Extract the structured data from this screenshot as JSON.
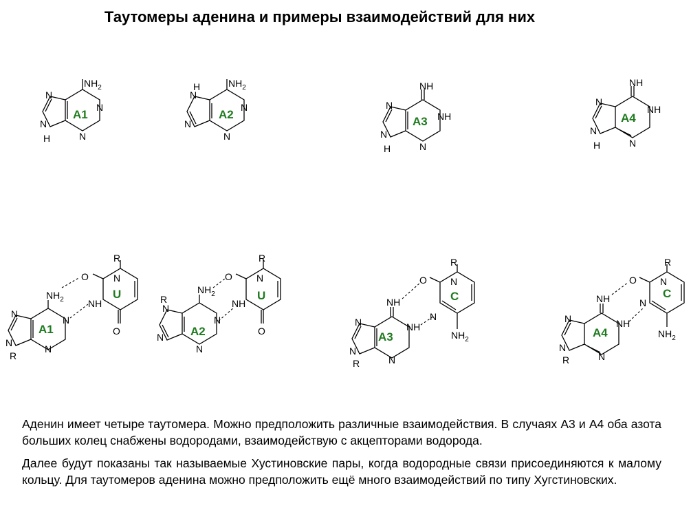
{
  "title": "Таутомеры аденина и примеры взаимодействий для них",
  "structures": {
    "tautomers": [
      {
        "tag": "A1",
        "nh2": "NH",
        "nh2_sub": "2",
        "h": "H",
        "n": "N"
      },
      {
        "tag": "A2",
        "nh2": "NH",
        "nh2_sub": "2",
        "h": "H",
        "n": "N"
      },
      {
        "tag": "A3",
        "imine": "NH",
        "nh": "NH",
        "h": "H",
        "n": "N"
      },
      {
        "tag": "A4",
        "imine": "NH",
        "nh": "NH",
        "h": "H",
        "n": "N"
      }
    ],
    "pairs": [
      {
        "adenine": "A1",
        "partner": "U",
        "r": "R",
        "o": "O",
        "n": "N",
        "nh": "NH",
        "nh2": "NH",
        "nh2_sub": "2"
      },
      {
        "adenine": "A2",
        "partner": "U",
        "r": "R",
        "o": "O",
        "n": "N",
        "nh": "NH",
        "nh2": "NH",
        "nh2_sub": "2"
      },
      {
        "adenine": "A3",
        "partner": "C",
        "r": "R",
        "o": "O",
        "n": "N",
        "nh": "NH",
        "nh2": "NH",
        "nh2_sub": "2"
      },
      {
        "adenine": "A4",
        "partner": "C",
        "r": "R",
        "o": "O",
        "n": "N",
        "nh": "NH",
        "nh2": "NH",
        "nh2_sub": "2"
      }
    ]
  },
  "paragraphs": [
    "Аденин имеет четыре таутомера. Можно предположить различные взаимодействия. В случаях А3 и А4  оба азота больших колец снабжены водородами, взаимодействую с акцепторами водорода.",
    "Далее будут показаны так называемые Хустиновские пары, когда водородные связи присоединяются к малому кольцу. Для таутомеров аденина можно предположить ещё много взаимодействий по типу Хугстиновских."
  ],
  "colors": {
    "tag": "#1f7a1f",
    "text": "#000000",
    "background": "#ffffff"
  }
}
